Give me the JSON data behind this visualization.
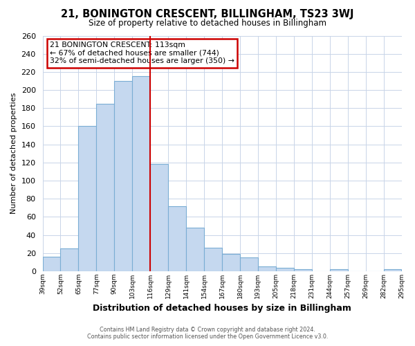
{
  "title": "21, BONINGTON CRESCENT, BILLINGHAM, TS23 3WJ",
  "subtitle": "Size of property relative to detached houses in Billingham",
  "xlabel": "Distribution of detached houses by size in Billingham",
  "ylabel": "Number of detached properties",
  "categories": [
    "39sqm",
    "52sqm",
    "65sqm",
    "77sqm",
    "90sqm",
    "103sqm",
    "116sqm",
    "129sqm",
    "141sqm",
    "154sqm",
    "167sqm",
    "180sqm",
    "193sqm",
    "205sqm",
    "218sqm",
    "231sqm",
    "244sqm",
    "257sqm",
    "269sqm",
    "282sqm",
    "295sqm"
  ],
  "values": [
    16,
    25,
    160,
    185,
    210,
    215,
    118,
    72,
    48,
    26,
    19,
    15,
    5,
    4,
    2,
    0,
    2,
    0,
    0,
    2
  ],
  "bar_color": "#c5d8ef",
  "bar_edge_color": "#7aadd4",
  "vline_color": "#cc0000",
  "annotation_title": "21 BONINGTON CRESCENT: 113sqm",
  "annotation_line1": "← 67% of detached houses are smaller (744)",
  "annotation_line2": "32% of semi-detached houses are larger (350) →",
  "annotation_box_color": "#ffffff",
  "annotation_box_edge": "#cc0000",
  "ylim": [
    0,
    260
  ],
  "yticks": [
    0,
    20,
    40,
    60,
    80,
    100,
    120,
    140,
    160,
    180,
    200,
    220,
    240,
    260
  ],
  "footer1": "Contains HM Land Registry data © Crown copyright and database right 2024.",
  "footer2": "Contains public sector information licensed under the Open Government Licence v3.0.",
  "bg_color": "#ffffff",
  "grid_color": "#c8d4e8"
}
